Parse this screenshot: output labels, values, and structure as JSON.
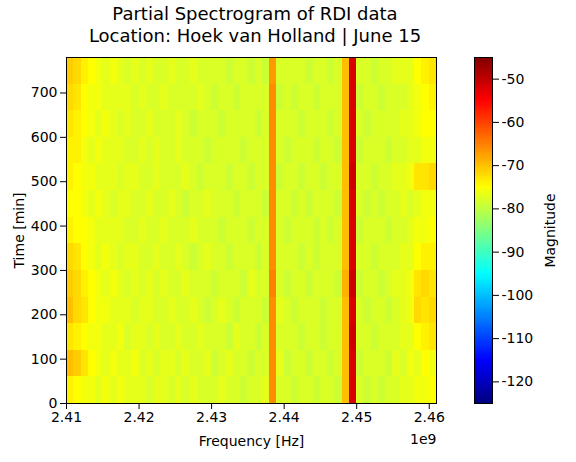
{
  "chart_data": {
    "type": "heatmap",
    "title": "Partial Spectrogram of RDI data",
    "subtitle": "Location: Hoek van Holland | June 15",
    "x_label": "Frequency [Hz]",
    "y_label": "Time [min]",
    "annotations": [
      "1e9"
    ],
    "color": "jet",
    "xlim": [
      2410000000,
      2461000000
    ],
    "xticks": [
      {
        "value": 2410000000,
        "label": "2.41"
      },
      {
        "value": 2420000000,
        "label": "2.42"
      },
      {
        "value": 2430000000,
        "label": "2.43"
      },
      {
        "value": 2440000000,
        "label": "2.44"
      },
      {
        "value": 2450000000,
        "label": "2.45"
      },
      {
        "value": 2460000000,
        "label": "2.46"
      }
    ],
    "ylim": [
      0,
      780
    ],
    "yticks": [
      0,
      100,
      200,
      300,
      400,
      500,
      600,
      700
    ],
    "frequency_bins": [
      2410000000,
      2411000000,
      2412000000,
      2413000000,
      2414000000,
      2415000000,
      2416000000,
      2417000000,
      2418000000,
      2419000000,
      2420000000,
      2421000000,
      2422000000,
      2423000000,
      2424000000,
      2425000000,
      2426000000,
      2427000000,
      2428000000,
      2429000000,
      2430000000,
      2431000000,
      2432000000,
      2433000000,
      2434000000,
      2435000000,
      2436000000,
      2437000000,
      2438000000,
      2439000000,
      2440000000,
      2441000000,
      2442000000,
      2443000000,
      2444000000,
      2445000000,
      2446000000,
      2447000000,
      2448000000,
      2449000000,
      2450000000,
      2451000000,
      2452000000,
      2453000000,
      2454000000,
      2455000000,
      2456000000,
      2457000000,
      2458000000,
      2459000000,
      2460000000,
      2461000000
    ],
    "time_bins": [
      0,
      60,
      120,
      180,
      240,
      300,
      360,
      420,
      480,
      540,
      600,
      660,
      720,
      780
    ],
    "magnitude": [
      [
        -74,
        -75,
        -76,
        -76,
        -77,
        -76,
        -77,
        -76,
        -77,
        -77,
        -77,
        -78,
        -77,
        -77,
        -78,
        -77,
        -78,
        -77,
        -78,
        -78,
        -78,
        -77,
        -78,
        -78,
        -79,
        -78,
        -78,
        -77,
        -66,
        -78,
        -78,
        -79,
        -78,
        -78,
        -79,
        -78,
        -78,
        -79,
        -70,
        -52,
        -78,
        -79,
        -78,
        -79,
        -78,
        -78,
        -77,
        -77,
        -76,
        -76,
        -75
      ],
      [
        -70,
        -71,
        -73,
        -75,
        -76,
        -77,
        -76,
        -77,
        -77,
        -76,
        -78,
        -77,
        -78,
        -77,
        -77,
        -78,
        -77,
        -78,
        -78,
        -77,
        -79,
        -78,
        -77,
        -78,
        -78,
        -79,
        -78,
        -78,
        -66,
        -77,
        -79,
        -78,
        -78,
        -79,
        -78,
        -78,
        -79,
        -78,
        -70,
        -52,
        -79,
        -78,
        -78,
        -78,
        -79,
        -77,
        -78,
        -76,
        -77,
        -75,
        -76
      ],
      [
        -73,
        -74,
        -75,
        -76,
        -76,
        -77,
        -77,
        -76,
        -78,
        -77,
        -77,
        -78,
        -77,
        -78,
        -78,
        -77,
        -78,
        -78,
        -77,
        -78,
        -78,
        -78,
        -79,
        -77,
        -78,
        -78,
        -79,
        -78,
        -66,
        -78,
        -78,
        -78,
        -79,
        -78,
        -78,
        -79,
        -78,
        -78,
        -70,
        -51,
        -78,
        -78,
        -79,
        -78,
        -78,
        -78,
        -77,
        -77,
        -75,
        -74,
        -73
      ],
      [
        -70,
        -72,
        -73,
        -75,
        -76,
        -76,
        -77,
        -77,
        -77,
        -78,
        -77,
        -77,
        -78,
        -78,
        -77,
        -78,
        -78,
        -77,
        -78,
        -79,
        -78,
        -77,
        -78,
        -79,
        -78,
        -78,
        -78,
        -79,
        -66,
        -77,
        -78,
        -79,
        -78,
        -78,
        -78,
        -79,
        -78,
        -78,
        -70,
        -52,
        -78,
        -79,
        -78,
        -78,
        -79,
        -78,
        -77,
        -76,
        -72,
        -73,
        -72
      ],
      [
        -71,
        -72,
        -74,
        -75,
        -76,
        -77,
        -76,
        -77,
        -78,
        -77,
        -78,
        -77,
        -78,
        -77,
        -78,
        -78,
        -77,
        -78,
        -78,
        -78,
        -79,
        -78,
        -78,
        -78,
        -79,
        -77,
        -78,
        -78,
        -65,
        -78,
        -79,
        -78,
        -78,
        -79,
        -78,
        -78,
        -78,
        -79,
        -69,
        -51,
        -79,
        -78,
        -78,
        -79,
        -78,
        -77,
        -77,
        -76,
        -73,
        -72,
        -73
      ],
      [
        -72,
        -73,
        -75,
        -76,
        -77,
        -76,
        -77,
        -78,
        -77,
        -77,
        -78,
        -78,
        -77,
        -78,
        -78,
        -77,
        -78,
        -79,
        -78,
        -77,
        -78,
        -78,
        -79,
        -78,
        -78,
        -78,
        -79,
        -78,
        -66,
        -78,
        -78,
        -78,
        -79,
        -78,
        -79,
        -78,
        -78,
        -78,
        -70,
        -52,
        -78,
        -78,
        -79,
        -78,
        -78,
        -78,
        -77,
        -77,
        -75,
        -74,
        -74
      ],
      [
        -74,
        -75,
        -75,
        -76,
        -77,
        -77,
        -77,
        -77,
        -78,
        -78,
        -77,
        -78,
        -78,
        -77,
        -78,
        -78,
        -78,
        -77,
        -78,
        -78,
        -78,
        -79,
        -78,
        -78,
        -78,
        -79,
        -78,
        -78,
        -66,
        -78,
        -79,
        -78,
        -78,
        -78,
        -79,
        -78,
        -79,
        -78,
        -70,
        -52,
        -79,
        -78,
        -78,
        -78,
        -79,
        -78,
        -78,
        -77,
        -76,
        -76,
        -75
      ],
      [
        -75,
        -75,
        -76,
        -77,
        -76,
        -77,
        -78,
        -77,
        -77,
        -78,
        -78,
        -77,
        -78,
        -78,
        -77,
        -78,
        -79,
        -78,
        -78,
        -77,
        -78,
        -78,
        -78,
        -79,
        -78,
        -78,
        -78,
        -79,
        -66,
        -78,
        -78,
        -79,
        -78,
        -79,
        -78,
        -78,
        -78,
        -79,
        -70,
        -52,
        -78,
        -79,
        -78,
        -79,
        -78,
        -78,
        -77,
        -78,
        -77,
        -76,
        -76
      ],
      [
        -74,
        -75,
        -76,
        -76,
        -77,
        -77,
        -77,
        -78,
        -77,
        -77,
        -78,
        -78,
        -77,
        -78,
        -78,
        -78,
        -77,
        -78,
        -79,
        -78,
        -78,
        -78,
        -79,
        -78,
        -78,
        -79,
        -78,
        -78,
        -66,
        -79,
        -78,
        -78,
        -79,
        -78,
        -78,
        -79,
        -78,
        -78,
        -70,
        -51,
        -78,
        -78,
        -79,
        -78,
        -78,
        -77,
        -77,
        -76,
        -73,
        -73,
        -72
      ],
      [
        -74,
        -74,
        -76,
        -77,
        -76,
        -77,
        -77,
        -77,
        -78,
        -78,
        -77,
        -78,
        -77,
        -78,
        -78,
        -77,
        -78,
        -78,
        -78,
        -79,
        -78,
        -78,
        -78,
        -78,
        -79,
        -78,
        -78,
        -78,
        -66,
        -78,
        -79,
        -78,
        -78,
        -78,
        -79,
        -78,
        -78,
        -79,
        -70,
        -52,
        -79,
        -78,
        -78,
        -78,
        -79,
        -78,
        -78,
        -77,
        -77,
        -76,
        -76
      ],
      [
        -73,
        -74,
        -75,
        -76,
        -77,
        -76,
        -77,
        -78,
        -77,
        -78,
        -78,
        -77,
        -78,
        -78,
        -78,
        -77,
        -78,
        -79,
        -78,
        -78,
        -78,
        -79,
        -78,
        -78,
        -78,
        -78,
        -79,
        -78,
        -66,
        -78,
        -78,
        -78,
        -79,
        -78,
        -78,
        -78,
        -79,
        -78,
        -70,
        -52,
        -78,
        -79,
        -78,
        -78,
        -78,
        -78,
        -77,
        -77,
        -76,
        -75,
        -75
      ],
      [
        -72,
        -73,
        -75,
        -76,
        -76,
        -77,
        -77,
        -77,
        -77,
        -78,
        -77,
        -78,
        -78,
        -77,
        -78,
        -78,
        -78,
        -78,
        -77,
        -78,
        -79,
        -78,
        -78,
        -79,
        -78,
        -78,
        -78,
        -78,
        -66,
        -79,
        -78,
        -79,
        -78,
        -78,
        -79,
        -78,
        -78,
        -78,
        -70,
        -52,
        -79,
        -78,
        -78,
        -79,
        -78,
        -78,
        -78,
        -77,
        -76,
        -75,
        -74
      ],
      [
        -71,
        -72,
        -74,
        -75,
        -76,
        -77,
        -76,
        -77,
        -78,
        -77,
        -78,
        -77,
        -78,
        -78,
        -77,
        -78,
        -78,
        -77,
        -78,
        -78,
        -78,
        -78,
        -79,
        -78,
        -78,
        -79,
        -78,
        -79,
        -67,
        -78,
        -78,
        -78,
        -78,
        -79,
        -78,
        -78,
        -79,
        -78,
        -70,
        -52,
        -78,
        -78,
        -79,
        -78,
        -78,
        -77,
        -77,
        -77,
        -75,
        -74,
        -73
      ]
    ],
    "color_label": "Magnitude",
    "clim": [
      -125,
      -45
    ],
    "cticks": [
      -50,
      -60,
      -70,
      -80,
      -90,
      -100,
      -110,
      -120
    ]
  }
}
